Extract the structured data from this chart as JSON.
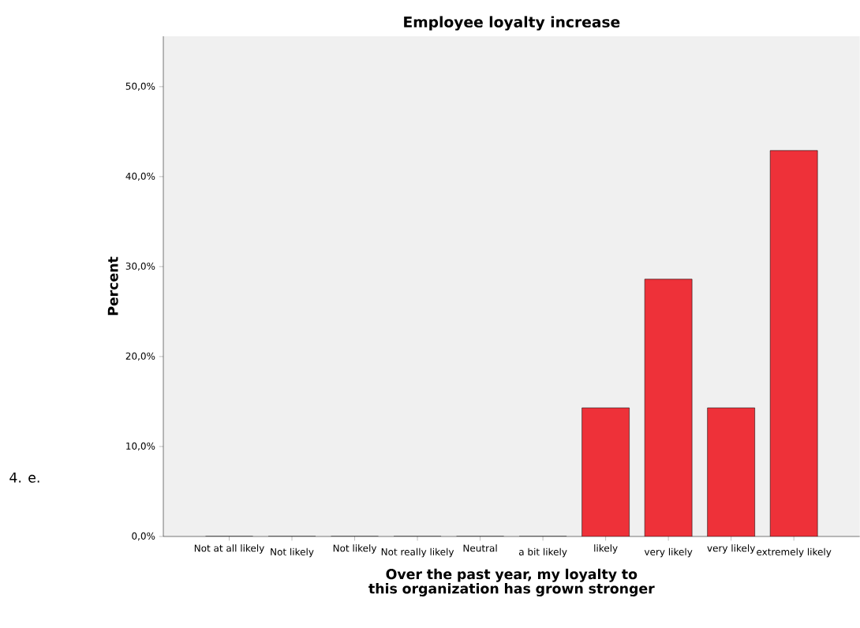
{
  "chart_data": {
    "type": "bar",
    "title": "Employee loyalty increase",
    "xlabel": "Over the past year, my loyalty to this organization has grown stronger",
    "ylabel": "Percent",
    "categories": [
      "Not at all likely",
      "Not likely",
      "Not likely",
      "Not really likely",
      "Neutral",
      "a bit likely",
      "likely",
      "very likely",
      "very likely",
      "extremely likely"
    ],
    "values": [
      0,
      0,
      0,
      0,
      0,
      0,
      14.3,
      28.6,
      14.3,
      42.9
    ],
    "color": "#ee3139",
    "ylim": [
      0,
      55.6
    ],
    "yticks": [
      {
        "value": 0,
        "label": "0,0%"
      },
      {
        "value": 10,
        "label": "10,0%"
      },
      {
        "value": 20,
        "label": "20,0%"
      },
      {
        "value": 30,
        "label": "30,0%"
      },
      {
        "value": 40,
        "label": "40,0%"
      },
      {
        "value": 50,
        "label": "50,0%"
      }
    ],
    "annotations": [
      "4. e."
    ]
  }
}
